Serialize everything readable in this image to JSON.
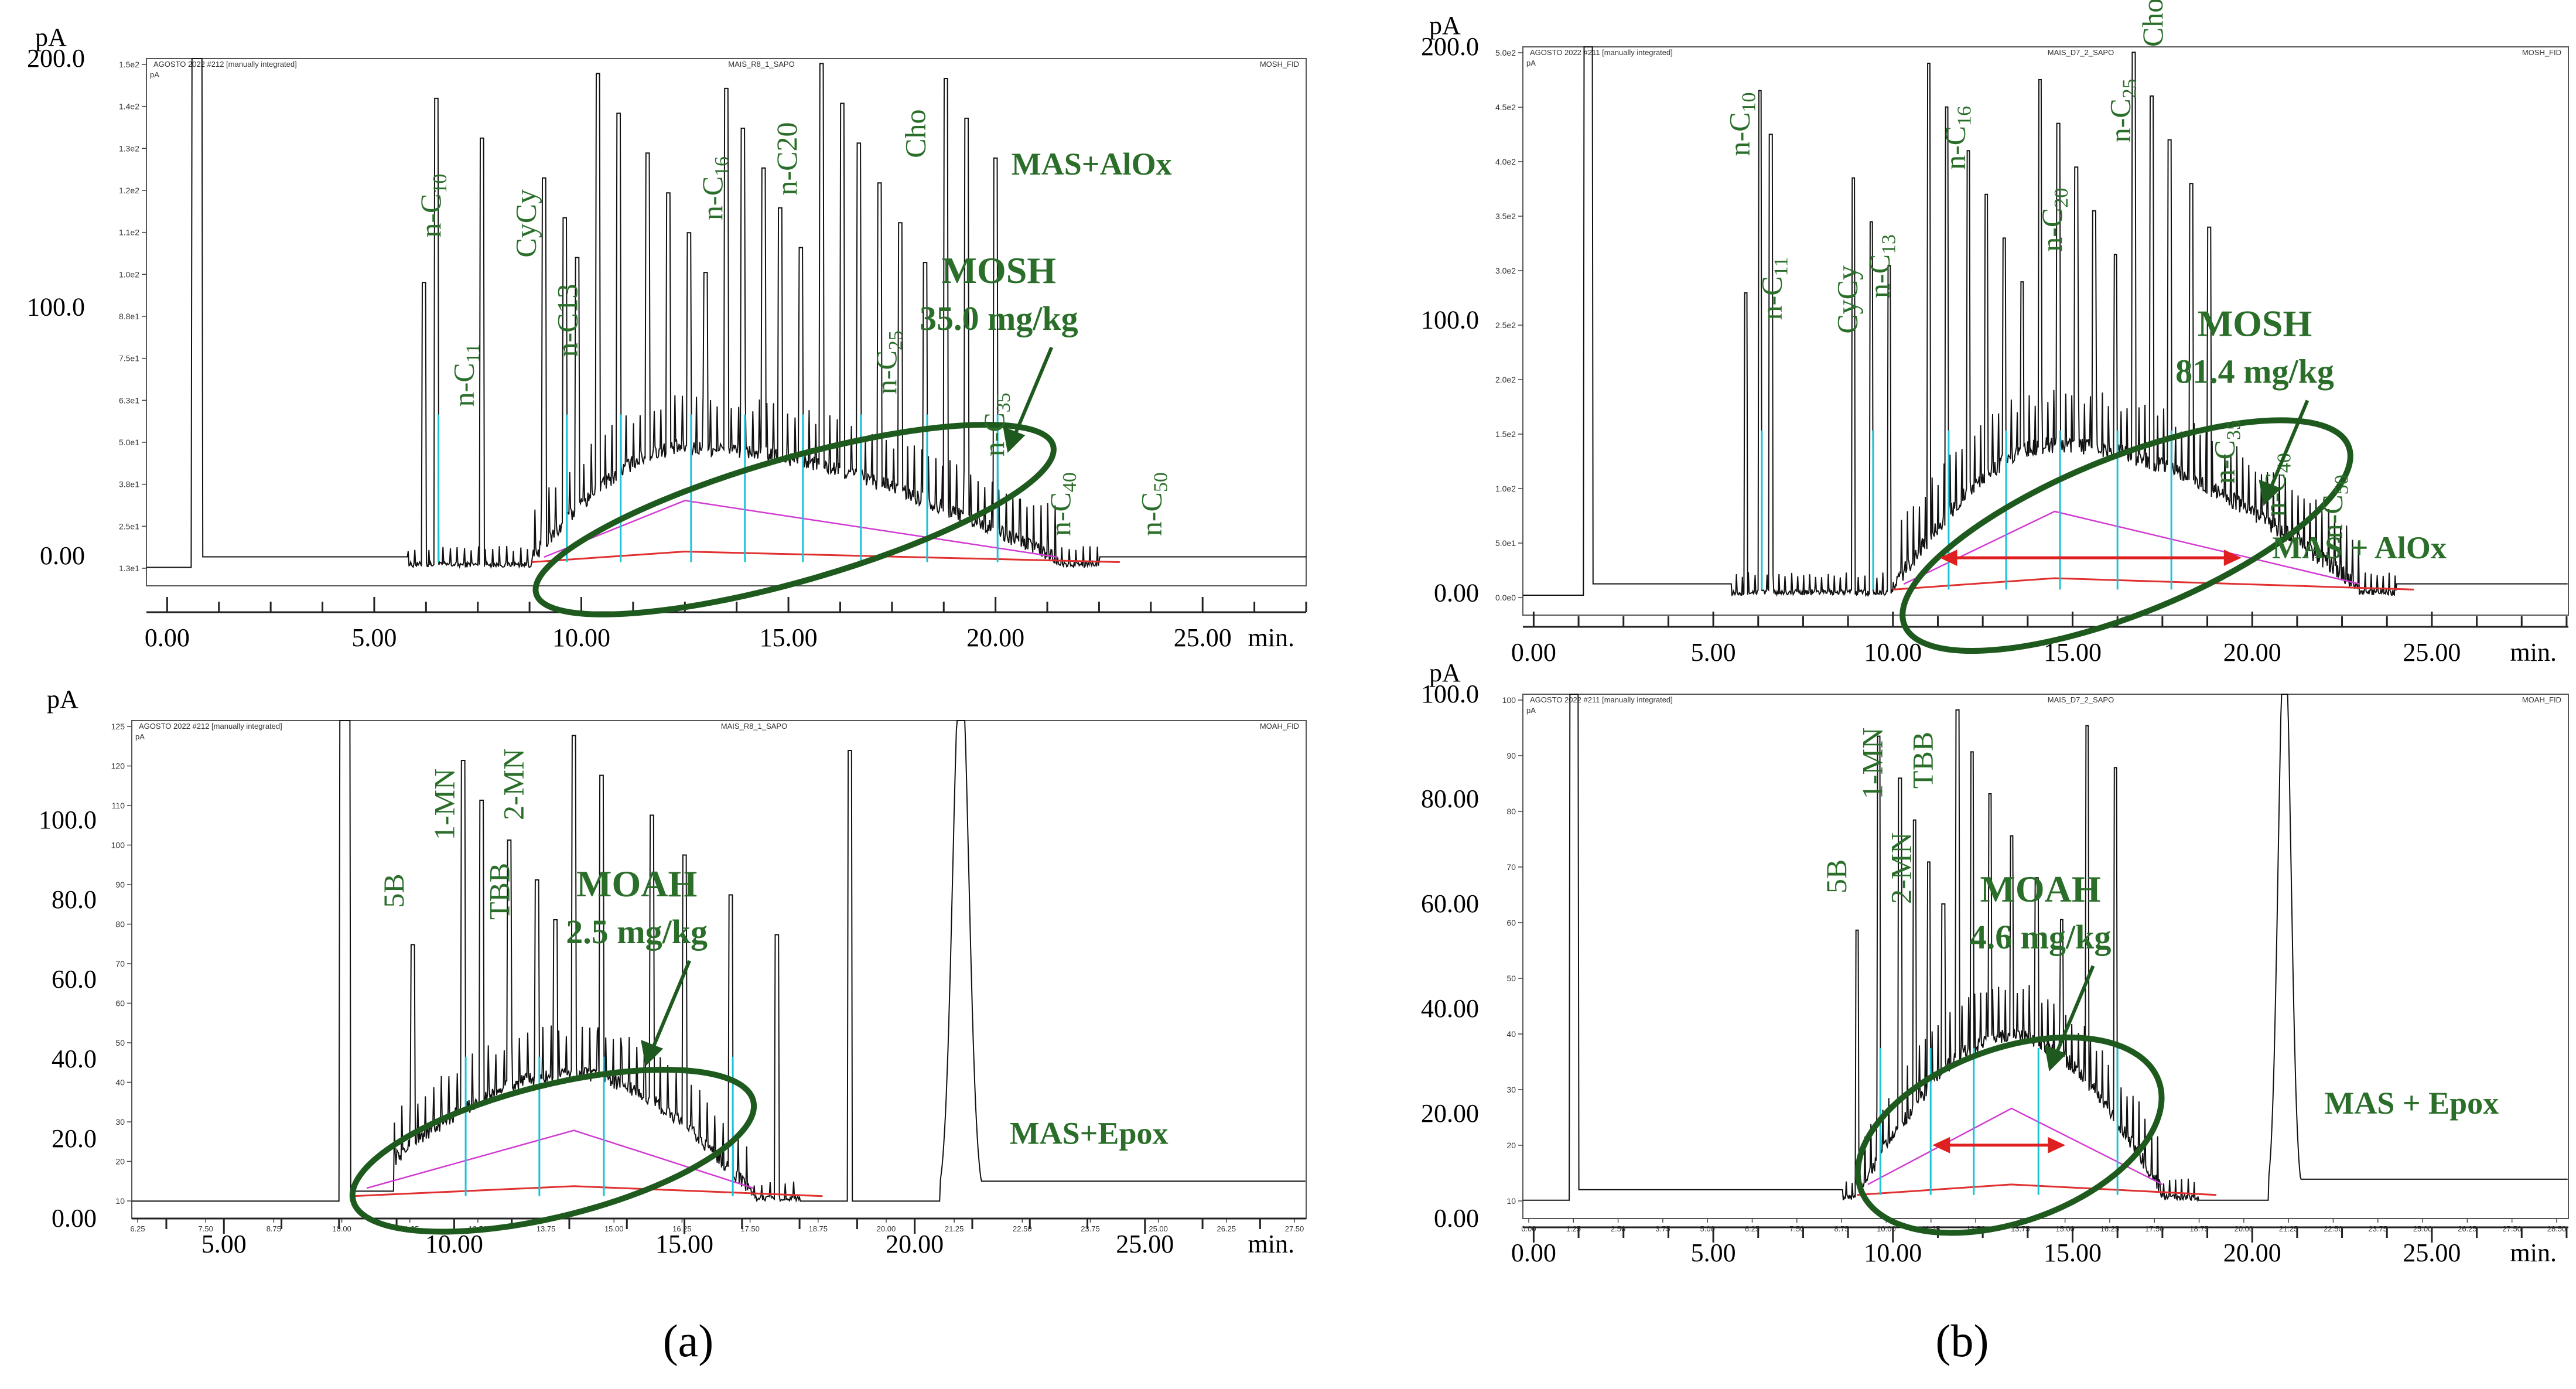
{
  "colors": {
    "trace": "#111111",
    "frame": "#555555",
    "hump": "#1e5a1e",
    "label_green": "#2a6e2a",
    "baseline": "#e03030",
    "peak_start": "#19c3d8",
    "integration": "#d23bd2",
    "arrow": "#e02020"
  },
  "panel_captions": [
    "(a)",
    "(b)"
  ],
  "chart_data": [
    {
      "id": "a-top",
      "type": "line",
      "title": "MOSH",
      "header": {
        "left": "AGOSTO 2022 #212 [manually integrated]",
        "center": "MAIS_R8_1_SAPO",
        "right": "MOSH_FID"
      },
      "unit_label": "pA",
      "xlabel": "min.",
      "xlim": [
        -0.5,
        27.5
      ],
      "ylim": [
        -12,
        200
      ],
      "ticks_x": [
        "0.00",
        "5.00",
        "10.00",
        "15.00",
        "20.00",
        "25.00"
      ],
      "ticks_y": [
        "0.00",
        "100.0",
        "200.0"
      ],
      "inner_ticks_y": [
        "1.5e2",
        "1.4e2",
        "1.3e2",
        "1.2e2",
        "1.1e2",
        "1.0e2",
        "8.8e1",
        "7.5e1",
        "6.3e1",
        "5.0e1",
        "3.8e1",
        "2.5e1",
        "1.3e1"
      ],
      "sample": "MAS+AlOx",
      "quant_title": "MOSH",
      "quant_value": "35.0 mg/kg",
      "peak_labels": [
        {
          "name": "n-C",
          "sub": "10",
          "x": 6.6,
          "y": 128
        },
        {
          "name": "n-C",
          "sub": "11",
          "x": 7.4,
          "y": 60
        },
        {
          "name": "CyCy",
          "sub": "",
          "x": 8.9,
          "y": 120
        },
        {
          "name": "n-C13",
          "sub": "",
          "x": 9.9,
          "y": 80
        },
        {
          "name": "n-C",
          "sub": "16",
          "x": 13.4,
          "y": 135
        },
        {
          "name": "n-C20",
          "sub": "",
          "x": 15.2,
          "y": 145
        },
        {
          "name": "n-C",
          "sub": "25",
          "x": 17.6,
          "y": 65
        },
        {
          "name": "Cho",
          "sub": "",
          "x": 18.3,
          "y": 160
        },
        {
          "name": "n-C",
          "sub": "35",
          "x": 20.2,
          "y": 40
        },
        {
          "name": "n-C",
          "sub": "40",
          "x": 21.8,
          "y": 8
        },
        {
          "name": "n-C",
          "sub": "50",
          "x": 24.0,
          "y": 8
        }
      ],
      "major_peaks": [
        6.2,
        6.5,
        7.6,
        9.1,
        9.6,
        9.9,
        10.4,
        10.9,
        11.6,
        12.1,
        12.6,
        13.0,
        13.5,
        13.9,
        14.4,
        14.8,
        15.3,
        15.8,
        16.3,
        16.7,
        17.2,
        17.7,
        18.3,
        18.8,
        19.3,
        20.0
      ],
      "hump": {
        "x_start": 8.8,
        "x_peak": 12.5,
        "x_end": 21.5,
        "height": 45
      },
      "solvent_start": 0.6
    },
    {
      "id": "b-top",
      "type": "line",
      "title": "MOSH",
      "header": {
        "left": "AGOSTO 2022 #211 [manually integrated]",
        "center": "MAIS_D7_2_SAPO",
        "right": "MOSH_FID"
      },
      "unit_label": "pA",
      "xlabel": "min.",
      "xlim": [
        -0.3,
        28.8
      ],
      "ylim": [
        -8,
        200
      ],
      "ticks_x": [
        "0.00",
        "5.00",
        "10.00",
        "15.00",
        "20.00",
        "25.00"
      ],
      "ticks_y": [
        "0.00",
        "100.0",
        "200.0"
      ],
      "inner_ticks_y": [
        "5.0e2",
        "4.5e2",
        "4.0e2",
        "3.5e2",
        "3.0e2",
        "2.5e2",
        "2.0e2",
        "1.5e2",
        "1.0e2",
        "5.0e1",
        "0.0e0"
      ],
      "sample": "MAS + AlOx",
      "quant_title": "MOSH",
      "quant_value": "81.4 mg/kg",
      "peak_labels": [
        {
          "name": "n-C",
          "sub": "10",
          "x": 6.0,
          "y": 160
        },
        {
          "name": "n-C",
          "sub": "11",
          "x": 6.9,
          "y": 100
        },
        {
          "name": "CyCy",
          "sub": "",
          "x": 9.0,
          "y": 95
        },
        {
          "name": "n-C",
          "sub": "13",
          "x": 9.9,
          "y": 108
        },
        {
          "name": "n-C",
          "sub": "16",
          "x": 12.0,
          "y": 155
        },
        {
          "name": "n-C",
          "sub": "20",
          "x": 14.7,
          "y": 125
        },
        {
          "name": "n-C",
          "sub": "25",
          "x": 16.6,
          "y": 165
        },
        {
          "name": "Cho",
          "sub": "",
          "x": 17.5,
          "y": 200
        },
        {
          "name": "n-C",
          "sub": "35",
          "x": 19.5,
          "y": 40
        },
        {
          "name": "n-C",
          "sub": "40",
          "x": 20.9,
          "y": 28
        },
        {
          "name": "n-C",
          "sub": "50",
          "x": 22.5,
          "y": 20
        }
      ],
      "major_peaks": [
        5.9,
        6.3,
        6.6,
        8.9,
        9.4,
        9.9,
        11.0,
        11.5,
        12.1,
        12.6,
        13.1,
        13.6,
        14.1,
        14.6,
        15.1,
        15.6,
        16.2,
        16.7,
        17.2,
        17.7,
        18.3,
        18.8
      ],
      "hump": {
        "x_start": 10.0,
        "x_peak": 14.5,
        "x_end": 23.0,
        "height": 52
      },
      "solvent_start": 1.4,
      "double_arrow": {
        "x1": 11.3,
        "x2": 19.7,
        "y": 13
      }
    },
    {
      "id": "a-bottom",
      "type": "line",
      "title": "MOAH",
      "header": {
        "left": "AGOSTO 2022 #212 [manually integrated]",
        "center": "MAIS_R8_1_SAPO",
        "right": "MOAH_FID"
      },
      "unit_label": "pA",
      "xlabel": "min.",
      "xlim": [
        3.0,
        28.5
      ],
      "ylim": [
        0,
        125
      ],
      "ticks_x": [
        "5.00",
        "10.00",
        "15.00",
        "20.00",
        "25.00"
      ],
      "ticks_y": [
        "0.00",
        "20.0",
        "40.0",
        "60.0",
        "80.0",
        "100.0"
      ],
      "inner_ticks_y": [
        "125",
        "120",
        "110",
        "100",
        "90",
        "80",
        "70",
        "60",
        "50",
        "40",
        "30",
        "20",
        "10"
      ],
      "inner_ticks_x": [
        "6.25",
        "7.50",
        "8.75",
        "10.00",
        "11.25",
        "12.50",
        "13.75",
        "15.00",
        "16.25",
        "17.50",
        "18.75",
        "20.00",
        "21.25",
        "22.50",
        "23.75",
        "25.00",
        "26.25",
        "27.50"
      ],
      "sample": "MAS+Epox",
      "quant_title": "MOAH",
      "quant_value": "2.5 mg/kg",
      "peak_labels": [
        {
          "name": "5B",
          "sub": "",
          "x": 8.9,
          "y": 78
        },
        {
          "name": "1-MN",
          "sub": "",
          "x": 10.0,
          "y": 95
        },
        {
          "name": "2-MN",
          "sub": "",
          "x": 11.5,
          "y": 100
        },
        {
          "name": "TBB",
          "sub": "",
          "x": 11.2,
          "y": 75
        }
      ],
      "major_peaks": [
        9.1,
        10.2,
        10.6,
        11.2,
        11.8,
        12.2,
        12.6,
        13.2,
        14.3,
        15.0,
        16.0,
        17.0,
        18.6
      ],
      "hump": {
        "x_start": 7.8,
        "x_peak": 12.6,
        "x_end": 16.5,
        "height": 30
      },
      "solvent_start": 7.5,
      "end_peak": {
        "x": 21.0,
        "height": 125
      }
    },
    {
      "id": "b-bottom",
      "type": "line",
      "title": "MOAH",
      "header": {
        "left": "AGOSTO 2022 #211 [manually integrated]",
        "center": "MAIS_D7_2_SAPO",
        "right": "MOAH_FID"
      },
      "unit_label": "pA",
      "xlabel": "min.",
      "xlim": [
        -0.3,
        28.8
      ],
      "ylim": [
        0,
        100
      ],
      "ticks_x": [
        "0.00",
        "5.00",
        "10.00",
        "15.00",
        "20.00",
        "25.00"
      ],
      "ticks_y": [
        "0.00",
        "20.00",
        "40.00",
        "60.00",
        "80.00",
        "100.0"
      ],
      "inner_ticks_y": [
        "100",
        "90",
        "80",
        "70",
        "60",
        "50",
        "40",
        "30",
        "20",
        "10"
      ],
      "inner_ticks_x": [
        "0.00",
        "1.25",
        "2.50",
        "3.75",
        "5.00",
        "6.25",
        "7.50",
        "8.75",
        "10.00",
        "11.25",
        "12.50",
        "13.75",
        "15.00",
        "16.25",
        "17.50",
        "18.75",
        "20.00",
        "21.25",
        "22.50",
        "23.75",
        "25.00",
        "26.25",
        "27.50",
        "28.50"
      ],
      "sample": "MAS + Epox",
      "quant_title": "MOAH",
      "quant_value": "4.6 mg/kg",
      "peak_labels": [
        {
          "name": "5B",
          "sub": "",
          "x": 8.7,
          "y": 62
        },
        {
          "name": "1-MN",
          "sub": "",
          "x": 9.7,
          "y": 80
        },
        {
          "name": "2-MN",
          "sub": "",
          "x": 10.5,
          "y": 60
        },
        {
          "name": "TBB",
          "sub": "",
          "x": 11.1,
          "y": 82
        }
      ],
      "major_peaks": [
        9.0,
        9.6,
        10.2,
        10.6,
        11.0,
        11.4,
        11.8,
        12.2,
        12.7,
        13.3,
        14.0,
        14.7,
        15.4,
        16.2
      ],
      "hump": {
        "x_start": 9.0,
        "x_peak": 13.3,
        "x_end": 17.5,
        "height": 30
      },
      "solvent_start": 1.0,
      "end_peak": {
        "x": 20.9,
        "height": 100
      },
      "double_arrow": {
        "x1": 11.1,
        "x2": 14.8,
        "y": 14
      }
    }
  ]
}
